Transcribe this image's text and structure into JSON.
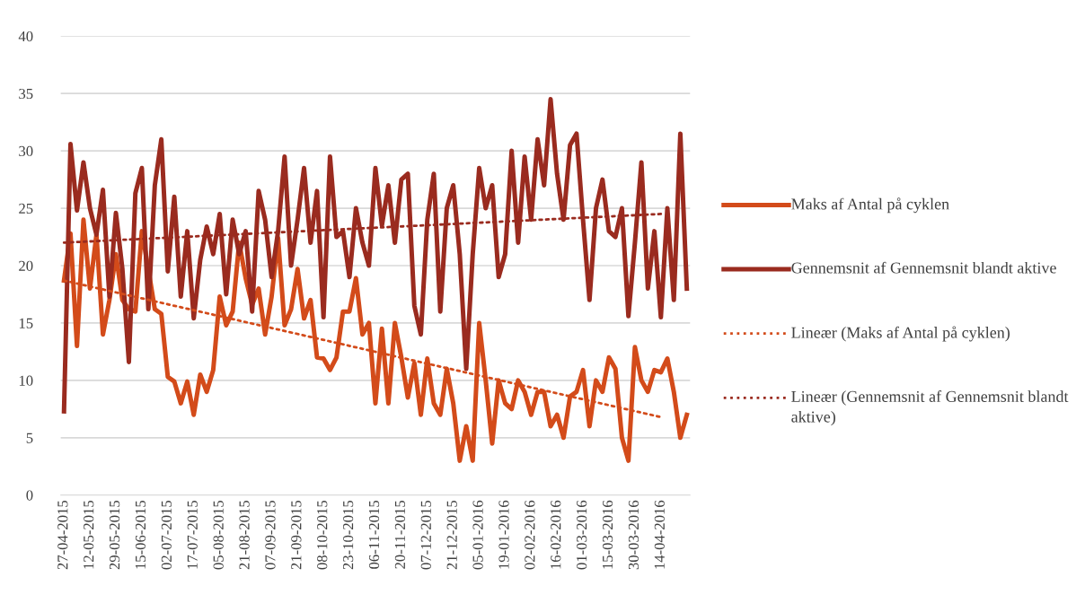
{
  "chart_data": {
    "type": "line",
    "categories": [
      "27-04-2015",
      null,
      null,
      null,
      "12-05-2015",
      null,
      null,
      null,
      "29-05-2015",
      null,
      null,
      null,
      "15-06-2015",
      null,
      null,
      null,
      "02-07-2015",
      null,
      null,
      null,
      "17-07-2015",
      null,
      null,
      null,
      "05-08-2015",
      null,
      null,
      null,
      "21-08-2015",
      null,
      null,
      null,
      "07-09-2015",
      null,
      null,
      null,
      "21-09-2015",
      null,
      null,
      null,
      "08-10-2015",
      null,
      null,
      null,
      "23-10-2015",
      null,
      null,
      null,
      "06-11-2015",
      null,
      null,
      null,
      "20-11-2015",
      null,
      null,
      null,
      "07-12-2015",
      null,
      null,
      null,
      "21-12-2015",
      null,
      null,
      null,
      "05-01-2016",
      null,
      null,
      null,
      "19-01-2016",
      null,
      null,
      null,
      "02-02-2016",
      null,
      null,
      null,
      "16-02-2016",
      null,
      null,
      null,
      "01-03-2016",
      null,
      null,
      null,
      "15-03-2016",
      null,
      null,
      null,
      "30-03-2016",
      null,
      null,
      null,
      "14-04-2016",
      null,
      null,
      null,
      null
    ],
    "series": [
      {
        "name": "Maks af Antal på cyklen",
        "color": "#d34b1a",
        "line_style": "solid",
        "values": [
          18.7,
          22.8,
          13,
          24,
          18,
          22.7,
          14,
          17,
          21,
          17,
          16.2,
          16,
          23,
          19.7,
          16.2,
          15.8,
          10.3,
          9.9,
          8,
          9.9,
          7,
          10.5,
          9,
          10.9,
          17.3,
          14.8,
          16,
          22,
          18.9,
          16.6,
          18,
          14,
          17.3,
          22.4,
          14.8,
          16.2,
          19.7,
          15.4,
          17,
          12,
          11.9,
          10.9,
          12,
          16,
          16,
          18.9,
          14,
          15,
          8,
          14.5,
          8,
          15,
          12,
          8.5,
          11.5,
          7,
          11.9,
          8,
          7,
          11,
          8,
          3,
          6,
          3,
          15,
          10,
          4.5,
          10,
          8,
          7.5,
          10,
          9,
          7,
          9,
          9,
          6,
          7,
          5,
          8.6,
          9,
          10.9,
          6,
          10,
          9,
          12,
          11,
          5,
          3,
          12.9,
          10,
          9,
          10.9,
          10.7,
          11.9,
          9,
          5,
          7
        ]
      },
      {
        "name": "Gennemsnit af Gennemsnit blandt aktive",
        "color": "#9a2b1f",
        "line_style": "solid",
        "values": [
          7.3,
          30.6,
          24.8,
          29,
          25,
          22.7,
          26.6,
          17.3,
          24.6,
          19.7,
          11.6,
          26.3,
          28.5,
          16.2,
          27,
          31,
          19.5,
          26,
          17.3,
          23,
          15.4,
          20.5,
          23.4,
          21,
          24.5,
          17.5,
          24,
          21,
          23,
          16,
          26.5,
          24,
          19,
          23,
          29.5,
          20,
          24,
          28.5,
          22,
          26.5,
          15.5,
          29.5,
          22.5,
          23,
          19,
          25,
          22,
          20,
          28.5,
          23.5,
          27,
          22,
          27.5,
          28,
          16.5,
          14,
          24,
          28,
          16,
          25,
          27,
          21,
          11,
          21,
          28.5,
          25,
          27,
          19,
          21,
          30,
          22,
          29.5,
          24,
          31,
          27,
          34.5,
          28,
          24,
          30.5,
          31.5,
          24,
          17,
          25,
          27.5,
          23,
          22.5,
          25,
          15.6,
          22,
          29,
          18,
          23,
          15.5,
          25,
          17,
          31.5,
          18
        ]
      },
      {
        "name": "Lineær (Maks af Antal på cyklen)",
        "type": "line",
        "color": "#d34b1a",
        "line_style": "dotted",
        "x": [
          "27-04-2015",
          "14-04-2016"
        ],
        "values": [
          18.7,
          6.8
        ]
      },
      {
        "name": "Lineær (Gennemsnit af Gennemsnit blandt aktive)",
        "type": "line",
        "color": "#9a2b1f",
        "line_style": "dotted",
        "x": [
          "27-04-2015",
          "14-04-2016"
        ],
        "values": [
          22,
          24.5
        ]
      }
    ],
    "ylim": [
      0,
      40
    ],
    "yticks": [
      0,
      5,
      10,
      15,
      20,
      25,
      30,
      35,
      40
    ],
    "grid": "y",
    "legend": "right"
  }
}
